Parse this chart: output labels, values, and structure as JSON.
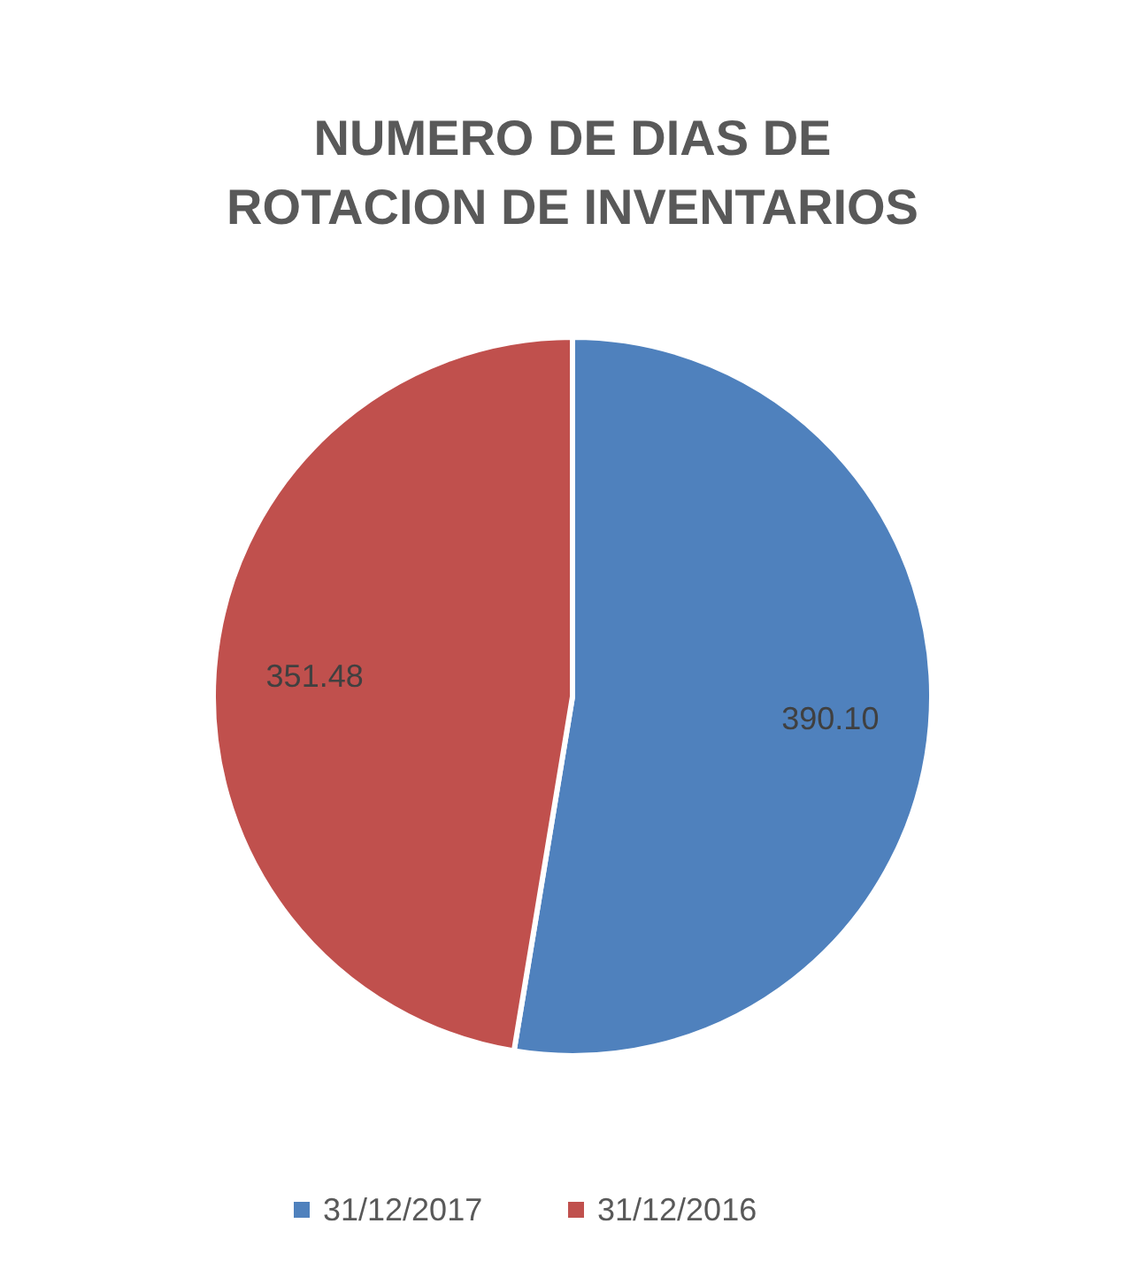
{
  "chart_data": {
    "type": "pie",
    "title": "NUMERO DE DIAS DE ROTACION DE INVENTARIOS",
    "categories": [
      "31/12/2017",
      "31/12/2016"
    ],
    "values": [
      390.1,
      351.48
    ],
    "colors": [
      "#4f81bd",
      "#c0504d"
    ],
    "value_labels": [
      "390.10",
      "351.48"
    ],
    "legend": "bottom"
  }
}
